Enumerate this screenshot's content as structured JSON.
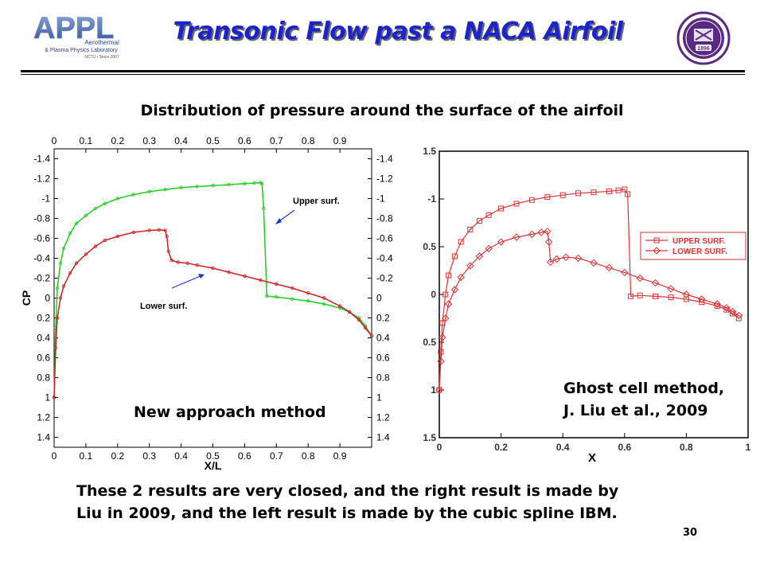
{
  "slide": {
    "title": "Transonic Flow past a NACA Airfoil",
    "subtitle": "Distribution of pressure around the surface of the airfoil",
    "conclusion": "These 2 results are very closed, and the right result is made by Liu in 2009, and the left result is made by the cubic spline IBM.",
    "slide_number": "30"
  },
  "logo_left": {
    "brand": "APPL",
    "line1": "Aerothermal",
    "line2": "& Plasma Physics Laboratory",
    "line3": "NCTU • Since 2007"
  },
  "logo_right": {
    "year": "1896",
    "icon": "university-seal-icon",
    "color": "#5a2a82"
  },
  "chart_data": [
    {
      "type": "line",
      "method_label": "New approach method",
      "xlabel": "X/L",
      "ylabel": "CP",
      "xlim": [
        0,
        1
      ],
      "ylim": [
        -1.5,
        1.5
      ],
      "y_inverted": true,
      "x_ticks": [
        "0",
        "0.1",
        "0.2",
        "0.3",
        "0.4",
        "0.5",
        "0.6",
        "0.7",
        "0.8",
        "0.9"
      ],
      "y_ticks": [
        "-1.4",
        "-1.2",
        "-1",
        "-0.8",
        "-0.6",
        "-0.4",
        "-0.2",
        "0",
        "0.2",
        "0.4",
        "0.6",
        "0.8",
        "1",
        "1.2",
        "1.4"
      ],
      "annotations": {
        "upper": "Upper surf.",
        "lower": "Lower surf."
      },
      "series": [
        {
          "color": "#22cc22",
          "x": [
            0.0,
            0.005,
            0.01,
            0.02,
            0.03,
            0.05,
            0.07,
            0.1,
            0.13,
            0.16,
            0.2,
            0.25,
            0.3,
            0.35,
            0.4,
            0.45,
            0.5,
            0.55,
            0.6,
            0.63,
            0.65,
            0.655,
            0.66,
            0.67,
            0.7,
            0.75,
            0.8,
            0.85,
            0.9,
            0.93,
            0.96,
            0.98,
            1.0
          ],
          "y": [
            1.0,
            0.3,
            -0.1,
            -0.35,
            -0.5,
            -0.65,
            -0.75,
            -0.83,
            -0.9,
            -0.95,
            -1.0,
            -1.04,
            -1.07,
            -1.09,
            -1.11,
            -1.12,
            -1.13,
            -1.14,
            -1.15,
            -1.155,
            -1.16,
            -1.15,
            -0.9,
            -0.02,
            -0.01,
            0.01,
            0.03,
            0.06,
            0.1,
            0.14,
            0.2,
            0.28,
            0.38
          ]
        },
        {
          "color": "#cc2222",
          "x": [
            0.0,
            0.005,
            0.01,
            0.02,
            0.03,
            0.05,
            0.07,
            0.1,
            0.13,
            0.16,
            0.2,
            0.25,
            0.3,
            0.33,
            0.35,
            0.355,
            0.36,
            0.37,
            0.39,
            0.42,
            0.45,
            0.5,
            0.55,
            0.6,
            0.65,
            0.7,
            0.75,
            0.8,
            0.85,
            0.9,
            0.93,
            0.96,
            0.98,
            1.0
          ],
          "y": [
            1.0,
            0.5,
            0.2,
            0.0,
            -0.12,
            -0.25,
            -0.35,
            -0.44,
            -0.52,
            -0.58,
            -0.62,
            -0.66,
            -0.68,
            -0.685,
            -0.68,
            -0.62,
            -0.47,
            -0.38,
            -0.36,
            -0.35,
            -0.33,
            -0.3,
            -0.26,
            -0.22,
            -0.18,
            -0.14,
            -0.1,
            -0.05,
            0.0,
            0.08,
            0.14,
            0.22,
            0.3,
            0.38
          ]
        }
      ]
    },
    {
      "type": "line",
      "method_label": "Ghost cell method,",
      "reference": "J. Liu et al., 2009",
      "xlabel": "X",
      "xlim": [
        0,
        1
      ],
      "ylim": [
        -1.5,
        1.5
      ],
      "y_inverted": true,
      "x_ticks": [
        "0",
        "0.2",
        "0.4",
        "0.6",
        "0.8",
        "1"
      ],
      "y_ticks": [
        "1.5",
        "-1",
        "0.5",
        "0",
        "0.5",
        "1",
        "1.5"
      ],
      "series": [
        {
          "name": "UPPER SURF.",
          "marker": "square",
          "color": "#dd3333",
          "x": [
            0.0,
            0.005,
            0.01,
            0.02,
            0.03,
            0.05,
            0.07,
            0.1,
            0.13,
            0.16,
            0.2,
            0.25,
            0.3,
            0.35,
            0.4,
            0.45,
            0.5,
            0.55,
            0.58,
            0.6,
            0.61,
            0.62,
            0.65,
            0.7,
            0.75,
            0.8,
            0.85,
            0.9,
            0.93,
            0.95,
            0.97
          ],
          "y": [
            1.0,
            0.6,
            0.3,
            0.0,
            -0.2,
            -0.4,
            -0.55,
            -0.68,
            -0.77,
            -0.83,
            -0.9,
            -0.95,
            -0.99,
            -1.02,
            -1.04,
            -1.06,
            -1.07,
            -1.08,
            -1.09,
            -1.1,
            -1.05,
            0.02,
            0.01,
            0.02,
            0.03,
            0.05,
            0.08,
            0.12,
            0.16,
            0.2,
            0.25
          ]
        },
        {
          "name": "LOWER SURF.",
          "marker": "diamond",
          "color": "#dd3333",
          "x": [
            0.0,
            0.005,
            0.01,
            0.02,
            0.03,
            0.05,
            0.07,
            0.1,
            0.13,
            0.16,
            0.2,
            0.25,
            0.3,
            0.33,
            0.35,
            0.355,
            0.36,
            0.38,
            0.41,
            0.45,
            0.5,
            0.55,
            0.6,
            0.65,
            0.7,
            0.75,
            0.8,
            0.85,
            0.9,
            0.93,
            0.95,
            0.97
          ],
          "y": [
            1.0,
            0.7,
            0.45,
            0.25,
            0.1,
            -0.05,
            -0.18,
            -0.3,
            -0.4,
            -0.48,
            -0.55,
            -0.6,
            -0.63,
            -0.65,
            -0.66,
            -0.55,
            -0.34,
            -0.37,
            -0.39,
            -0.38,
            -0.33,
            -0.28,
            -0.23,
            -0.17,
            -0.12,
            -0.06,
            0.0,
            0.05,
            0.1,
            0.14,
            0.18,
            0.22
          ]
        }
      ]
    }
  ]
}
